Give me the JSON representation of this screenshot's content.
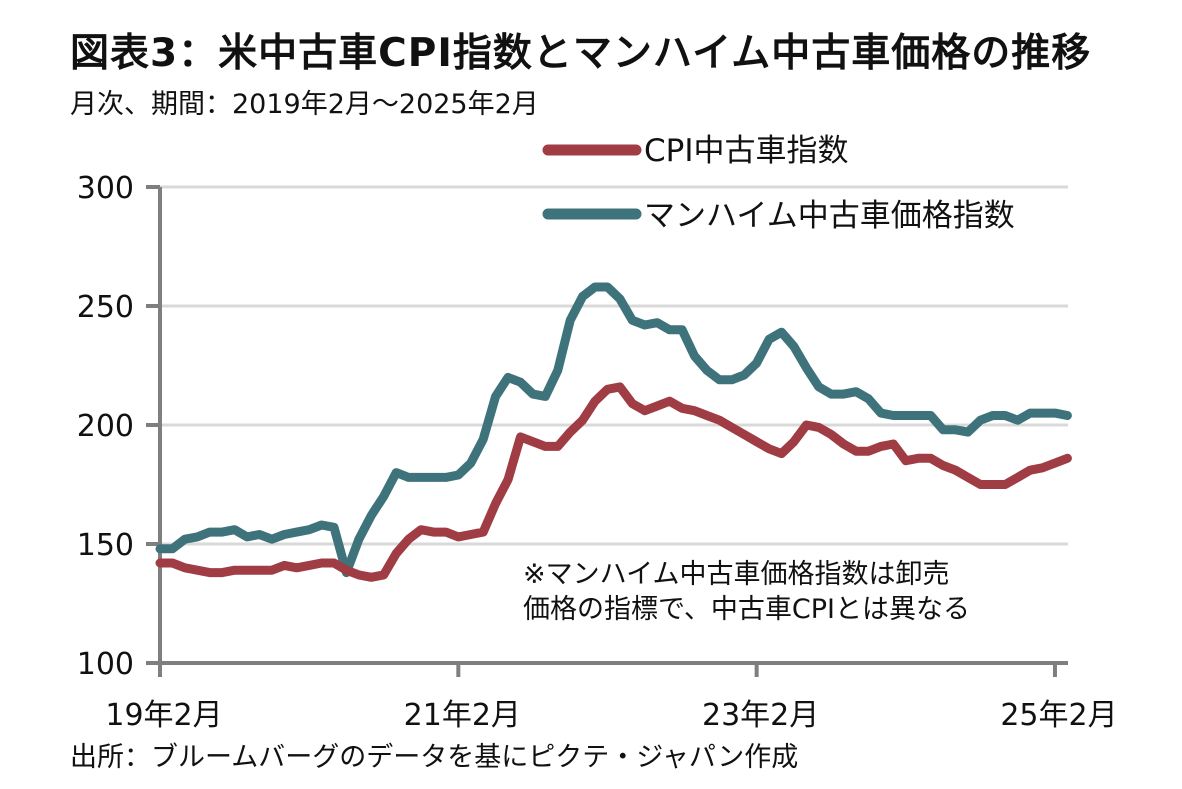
{
  "header": {
    "title": "図表3：米中古車CPI指数とマンハイム中古車価格の推移",
    "subtitle": "月次、期間：2019年2月～2025年2月"
  },
  "footer": {
    "source": "出所：ブルームバーグのデータを基にピクテ・ジャパン作成"
  },
  "colors": {
    "cpi": "#a03c43",
    "manheim": "#3f737b",
    "axis": "#7f7f7f",
    "grid": "#d9d9d9"
  },
  "chart_data": {
    "type": "line",
    "title": "図表3：米中古車CPI指数とマンハイム中古車価格の推移",
    "subtitle": "月次、期間：2019年2月～2025年2月",
    "xlabel": "",
    "ylabel": "",
    "ylim": [
      100,
      300
    ],
    "yticks": [
      100,
      150,
      200,
      250,
      300
    ],
    "ytick_labels": [
      "100",
      "150",
      "200",
      "250",
      "300"
    ],
    "x_start": "2019-02",
    "x_end": "2025-03",
    "xticks_month_index": [
      0,
      24,
      48,
      72
    ],
    "xtick_labels": [
      "19年2月",
      "21年2月",
      "23年2月",
      "25年2月"
    ],
    "grid": true,
    "legend_position": "top-right",
    "annotation": [
      "※マンハイム中古車価格指数は卸売",
      "価格の指標で、中古車CPIとは異なる"
    ],
    "series": [
      {
        "name": "CPI中古車指数",
        "color": "#a03c43",
        "values": [
          142,
          142,
          140,
          139,
          138,
          138,
          139,
          139,
          139,
          139,
          141,
          140,
          141,
          142,
          142,
          139,
          137,
          136,
          137,
          146,
          152,
          156,
          155,
          155,
          153,
          154,
          155,
          167,
          177,
          195,
          193,
          191,
          191,
          197,
          202,
          210,
          215,
          216,
          209,
          206,
          208,
          210,
          207,
          206,
          204,
          202,
          199,
          196,
          193,
          190,
          188,
          193,
          200,
          199,
          196,
          192,
          189,
          189,
          191,
          192,
          185,
          186,
          186,
          183,
          181,
          178,
          175,
          175,
          175,
          178,
          181,
          182,
          184,
          186
        ]
      },
      {
        "name": "マンハイム中古車価格指数",
        "color": "#3f737b",
        "values": [
          148,
          148,
          152,
          153,
          155,
          155,
          156,
          153,
          154,
          152,
          154,
          155,
          156,
          158,
          157,
          138,
          152,
          162,
          170,
          180,
          178,
          178,
          178,
          178,
          179,
          184,
          194,
          212,
          220,
          218,
          213,
          212,
          223,
          244,
          254,
          258,
          258,
          253,
          244,
          242,
          243,
          240,
          240,
          229,
          223,
          219,
          219,
          221,
          226,
          236,
          239,
          233,
          224,
          216,
          213,
          213,
          214,
          211,
          205,
          204,
          204,
          204,
          204,
          198,
          198,
          197,
          202,
          204,
          204,
          202,
          205,
          205,
          205,
          204
        ]
      }
    ]
  }
}
